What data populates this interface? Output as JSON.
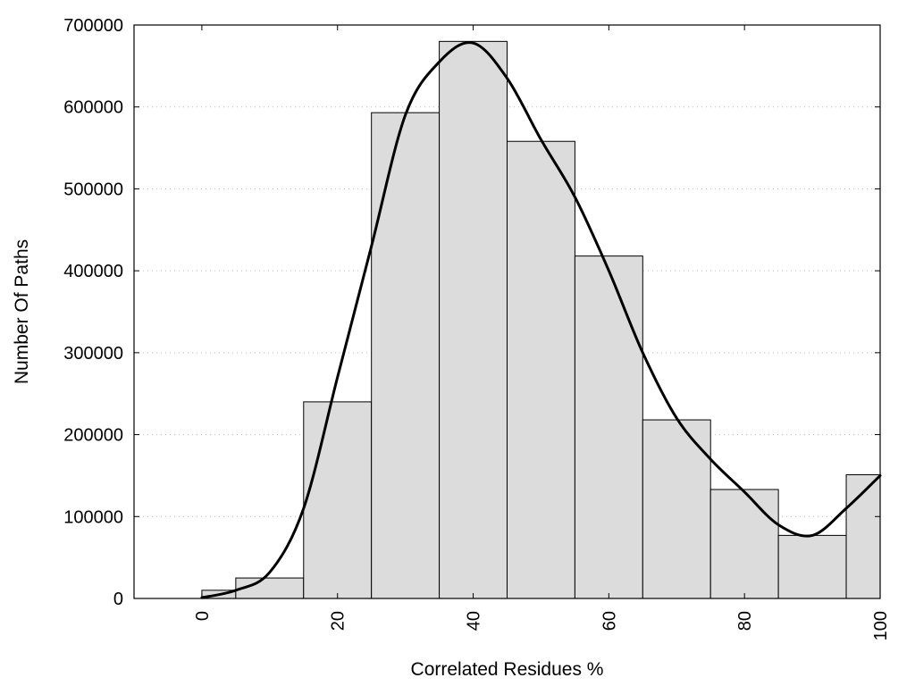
{
  "chart_data": {
    "type": "bar",
    "xlabel": "Correlated Residues %",
    "ylabel": "Number Of Paths",
    "xlim": [
      -10,
      100
    ],
    "ylim": [
      0,
      700000
    ],
    "x_ticks": [
      0,
      20,
      40,
      60,
      80,
      100
    ],
    "x_tick_labels": [
      "0",
      "20",
      "40",
      "60",
      "80",
      "100"
    ],
    "y_ticks": [
      0,
      100000,
      200000,
      300000,
      400000,
      500000,
      600000,
      700000
    ],
    "y_tick_labels": [
      "0",
      "100000",
      "200000",
      "300000",
      "400000",
      "500000",
      "600000",
      "700000"
    ],
    "grid": "horizontal dotted",
    "bars": [
      {
        "x0": 0,
        "x1": 5,
        "value": 10000
      },
      {
        "x0": 5,
        "x1": 15,
        "value": 25000
      },
      {
        "x0": 15,
        "x1": 25,
        "value": 240000
      },
      {
        "x0": 25,
        "x1": 35,
        "value": 593000
      },
      {
        "x0": 35,
        "x1": 45,
        "value": 680000
      },
      {
        "x0": 45,
        "x1": 55,
        "value": 558000
      },
      {
        "x0": 55,
        "x1": 65,
        "value": 418000
      },
      {
        "x0": 65,
        "x1": 75,
        "value": 218000
      },
      {
        "x0": 75,
        "x1": 85,
        "value": 133000
      },
      {
        "x0": 85,
        "x1": 95,
        "value": 77000
      },
      {
        "x0": 95,
        "x1": 100,
        "value": 151000
      }
    ],
    "curve": {
      "x": [
        0,
        5,
        10,
        15,
        20,
        25,
        30,
        35,
        40,
        45,
        50,
        55,
        60,
        65,
        70,
        75,
        80,
        85,
        90,
        95,
        100
      ],
      "y": [
        1000,
        10000,
        32000,
        110000,
        270000,
        430000,
        590000,
        655000,
        678000,
        635000,
        560000,
        490000,
        400000,
        300000,
        220000,
        170000,
        130000,
        90000,
        77000,
        110000,
        150000
      ]
    },
    "colors": {
      "bar_fill": "#dcdcdc",
      "bar_stroke": "#000000",
      "curve": "#000000",
      "grid": "#bbbbbb"
    }
  }
}
